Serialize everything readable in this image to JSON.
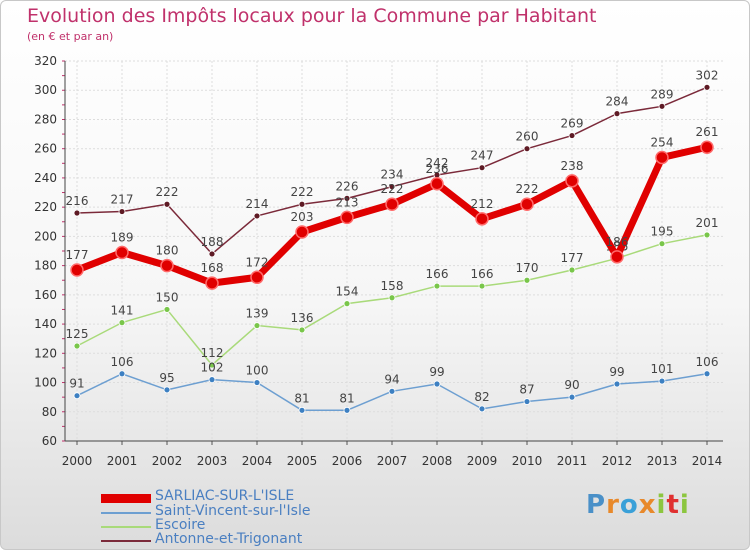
{
  "chart_data": {
    "type": "line",
    "title": "Evolution des Impôts locaux pour la Commune par Habitant",
    "subtitle": "(en € et par an)",
    "xlabel": "",
    "ylabel": "",
    "ylim": [
      60,
      320
    ],
    "yticks": [
      "60",
      "80",
      "100",
      "120",
      "140",
      "160",
      "180",
      "200",
      "220",
      "240",
      "260",
      "280",
      "300",
      "320"
    ],
    "categories": [
      "2000",
      "2001",
      "2002",
      "2003",
      "2004",
      "2005",
      "2006",
      "2007",
      "2008",
      "2009",
      "2010",
      "2011",
      "2012",
      "2013",
      "2014"
    ],
    "grid": true,
    "series": [
      {
        "name": "Antonne-et-Trigonant",
        "color": "#7b2a3a",
        "marker": "#5e1a24",
        "values": [
          216,
          217,
          222,
          188,
          214,
          222,
          226,
          234,
          242,
          247,
          260,
          269,
          284,
          289,
          302
        ],
        "labels": [
          "216",
          "217",
          "222",
          "188",
          "214",
          "222",
          "226",
          "234",
          "242",
          "247",
          "260",
          "269",
          "284",
          "289",
          "302"
        ]
      },
      {
        "name": "Escoire",
        "color": "#a9da7a",
        "marker": "#79c64a",
        "values": [
          125,
          141,
          150,
          112,
          139,
          136,
          154,
          158,
          166,
          166,
          170,
          177,
          185,
          195,
          201
        ],
        "labels": [
          "125",
          "141",
          "150",
          "112",
          "139",
          "136",
          "154",
          "158",
          "166",
          "166",
          "170",
          "177",
          "185",
          "195",
          "201"
        ]
      },
      {
        "name": "Saint-Vincent-sur-l'Isle",
        "color": "#6d9fd1",
        "marker": "#3d80c2",
        "values": [
          91,
          106,
          95,
          102,
          100,
          81,
          81,
          94,
          99,
          82,
          87,
          90,
          99,
          101,
          106
        ],
        "labels": [
          "91",
          "106",
          "95",
          "102",
          "100",
          "81",
          "81",
          "94",
          "99",
          "82",
          "87",
          "90",
          "99",
          "101",
          "106"
        ]
      },
      {
        "name": "SARLIAC-SUR-L'ISLE",
        "color": "#e00000",
        "marker": "#e00000",
        "values": [
          177,
          189,
          180,
          168,
          172,
          203,
          213,
          222,
          236,
          212,
          222,
          238,
          186,
          254,
          261
        ],
        "labels": [
          "177",
          "189",
          "180",
          "168",
          "172",
          "203",
          "213",
          "222",
          "236",
          "212",
          "222",
          "238",
          "186",
          "254",
          "261"
        ]
      }
    ]
  },
  "legend": [
    {
      "name": "SARLIAC-SUR-L'ISLE",
      "color": "#e00000",
      "thickness": "thick"
    },
    {
      "name": "Saint-Vincent-sur-l'Isle",
      "color": "#6d9fd1",
      "thickness": "thin"
    },
    {
      "name": "Escoire",
      "color": "#a9da7a",
      "thickness": "thin"
    },
    {
      "name": "Antonne-et-Trigonant",
      "color": "#7b2a3a",
      "thickness": "thin"
    }
  ],
  "logo": {
    "text": "Proxiti",
    "colors": [
      "#4a90c8",
      "#e8892b",
      "#3aa0d8",
      "#e8892b",
      "#8cc63f",
      "#e03030",
      "#8cc63f"
    ]
  }
}
